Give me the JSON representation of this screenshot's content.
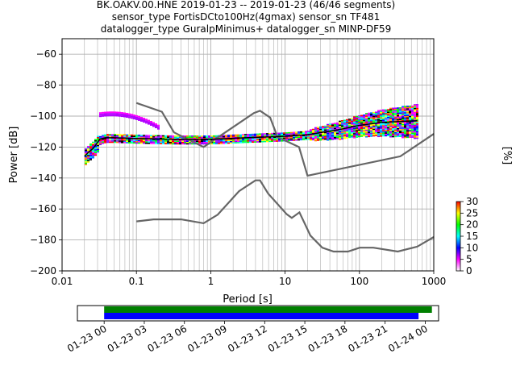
{
  "chart_data": [
    {
      "type": "line",
      "title_lines": [
        "BK.OAKV.00.HNE   2019-01-23 -- 2019-01-23  (46/46 segments)",
        "sensor_type FortisDCto100Hz(4gmax) sensor_sn TF481",
        "datalogger_type GuralpMinimus+ datalogger_sn MINP-DF59"
      ],
      "xlabel": "Period [s]",
      "ylabel": "Power [dB]",
      "xscale": "log",
      "xlim": [
        0.01,
        1000
      ],
      "ylim": [
        -200,
        -50
      ],
      "xticks": [
        {
          "value": 0.01,
          "label": "0.01"
        },
        {
          "value": 0.1,
          "label": "0.1"
        },
        {
          "value": 1,
          "label": "1"
        },
        {
          "value": 10,
          "label": "10"
        },
        {
          "value": 100,
          "label": "100"
        },
        {
          "value": 1000,
          "label": "1000"
        }
      ],
      "yticks": [
        {
          "value": -60,
          "label": "−60"
        },
        {
          "value": -80,
          "label": "−80"
        },
        {
          "value": -100,
          "label": "−100"
        },
        {
          "value": -120,
          "label": "−120"
        },
        {
          "value": -140,
          "label": "−140"
        },
        {
          "value": -160,
          "label": "−160"
        },
        {
          "value": -180,
          "label": "−180"
        },
        {
          "value": -200,
          "label": "−200"
        }
      ],
      "grid": true,
      "model_curves": [
        {
          "points": [
            [
              0.1,
              -91.5
            ],
            [
              0.22,
              -97.2
            ],
            [
              0.32,
              -110.5
            ],
            [
              0.8,
              -120
            ],
            [
              3.8,
              -98
            ],
            [
              4.6,
              -96.5
            ],
            [
              6.3,
              -101
            ],
            [
              7.9,
              -113.5
            ],
            [
              15.4,
              -120
            ],
            [
              20,
              -138.5
            ],
            [
              354.8,
              -126
            ],
            [
              1000,
              -111.5
            ]
          ]
        },
        {
          "points": [
            [
              0.1,
              -168
            ],
            [
              0.17,
              -166.7
            ],
            [
              0.4,
              -166.7
            ],
            [
              0.8,
              -169.2
            ],
            [
              1.24,
              -163.7
            ],
            [
              2.4,
              -148.5
            ],
            [
              4,
              -141.5
            ],
            [
              4.6,
              -141.5
            ],
            [
              5.9,
              -150
            ],
            [
              10.5,
              -163.4
            ],
            [
              12.3,
              -165.8
            ],
            [
              15.6,
              -162.2
            ],
            [
              21.9,
              -177.2
            ],
            [
              31.6,
              -185
            ],
            [
              45,
              -187.5
            ],
            [
              70,
              -187.5
            ],
            [
              101,
              -185
            ],
            [
              154,
              -185
            ],
            [
              328,
              -187.5
            ],
            [
              600,
              -184.3
            ],
            [
              1000,
              -178.1
            ]
          ]
        }
      ],
      "mean_curve": [
        [
          0.02,
          -126
        ],
        [
          0.023,
          -123
        ],
        [
          0.026,
          -121
        ],
        [
          0.029,
          -118
        ],
        [
          0.032,
          -115
        ],
        [
          0.038,
          -114
        ],
        [
          0.05,
          -114
        ],
        [
          0.1,
          -114.5
        ],
        [
          0.3,
          -115
        ],
        [
          1,
          -115
        ],
        [
          3,
          -114
        ],
        [
          10,
          -113
        ],
        [
          20,
          -112
        ],
        [
          50,
          -109
        ],
        [
          100,
          -106
        ],
        [
          200,
          -104
        ],
        [
          600,
          -103
        ]
      ],
      "colorbar": {
        "label": "[%]",
        "ticks": [
          {
            "value": 0,
            "label": "0"
          },
          {
            "value": 5,
            "label": "5"
          },
          {
            "value": 10,
            "label": "10"
          },
          {
            "value": 15,
            "label": "15"
          },
          {
            "value": 20,
            "label": "20"
          },
          {
            "value": 25,
            "label": "25"
          },
          {
            "value": 30,
            "label": "30"
          }
        ],
        "range": [
          0,
          30
        ],
        "colors": [
          "#ffffff",
          "#ff00ff",
          "#0000ff",
          "#00ffff",
          "#00ff00",
          "#ffff00",
          "#ff0000"
        ]
      }
    },
    {
      "type": "timeline",
      "xlim": [
        "2019-01-22 22:00",
        "2019-01-24 01:00"
      ],
      "xticks": [
        {
          "value": "2019-01-23 00:00",
          "label": "01-23 00"
        },
        {
          "value": "2019-01-23 03:00",
          "label": "01-23 03"
        },
        {
          "value": "2019-01-23 06:00",
          "label": "01-23 06"
        },
        {
          "value": "2019-01-23 09:00",
          "label": "01-23 09"
        },
        {
          "value": "2019-01-23 12:00",
          "label": "01-23 12"
        },
        {
          "value": "2019-01-23 15:00",
          "label": "01-23 15"
        },
        {
          "value": "2019-01-23 18:00",
          "label": "01-23 18"
        },
        {
          "value": "2019-01-23 21:00",
          "label": "01-23 21"
        },
        {
          "value": "2019-01-24 00:00",
          "label": "01-24 00"
        }
      ],
      "bars": [
        {
          "color": "#008000",
          "start": "2019-01-23 00:00",
          "end": "2019-01-24 00:30"
        },
        {
          "color": "#0000ff",
          "start": "2019-01-23 00:00",
          "end": "2019-01-23 23:30"
        }
      ]
    }
  ]
}
